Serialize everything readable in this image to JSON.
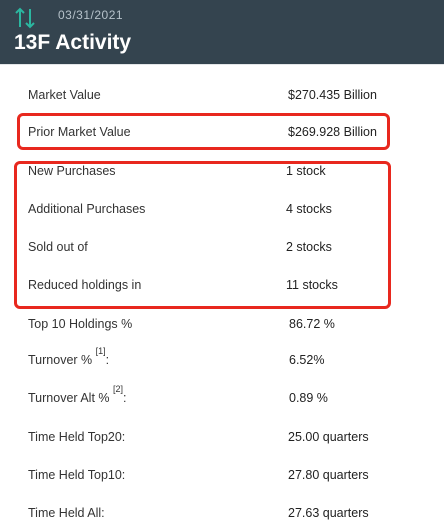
{
  "header": {
    "date": "03/31/2021",
    "title": "13F Activity",
    "icon": "up-down-arrows-icon",
    "colors": {
      "background": "#34444f",
      "arrow": "#2bb7a0"
    }
  },
  "highlight_color": "#e8281e",
  "rows": [
    {
      "label": "Market Value",
      "value": "$270.435 Billion"
    },
    {
      "label": "Prior Market Value",
      "value": "$269.928 Billion"
    },
    {
      "label": "New Purchases",
      "value": "1 stock"
    },
    {
      "label": "Additional Purchases",
      "value": "4 stocks"
    },
    {
      "label": "Sold out of",
      "value": "2 stocks"
    },
    {
      "label": "Reduced holdings in",
      "value": "11 stocks"
    },
    {
      "label": "Top 10 Holdings %",
      "value": "86.72 %"
    },
    {
      "label": "Turnover %",
      "footnote": "[1]",
      "suffix": ":",
      "value": "6.52%"
    },
    {
      "label": "Turnover Alt %",
      "footnote": "[2]",
      "suffix": ":",
      "value": "0.89 %"
    },
    {
      "label": "Time Held Top20:",
      "value": "25.00 quarters"
    },
    {
      "label": "Time Held Top10:",
      "value": "27.80 quarters"
    },
    {
      "label": "Time Held All:",
      "value": "27.63 quarters"
    }
  ]
}
